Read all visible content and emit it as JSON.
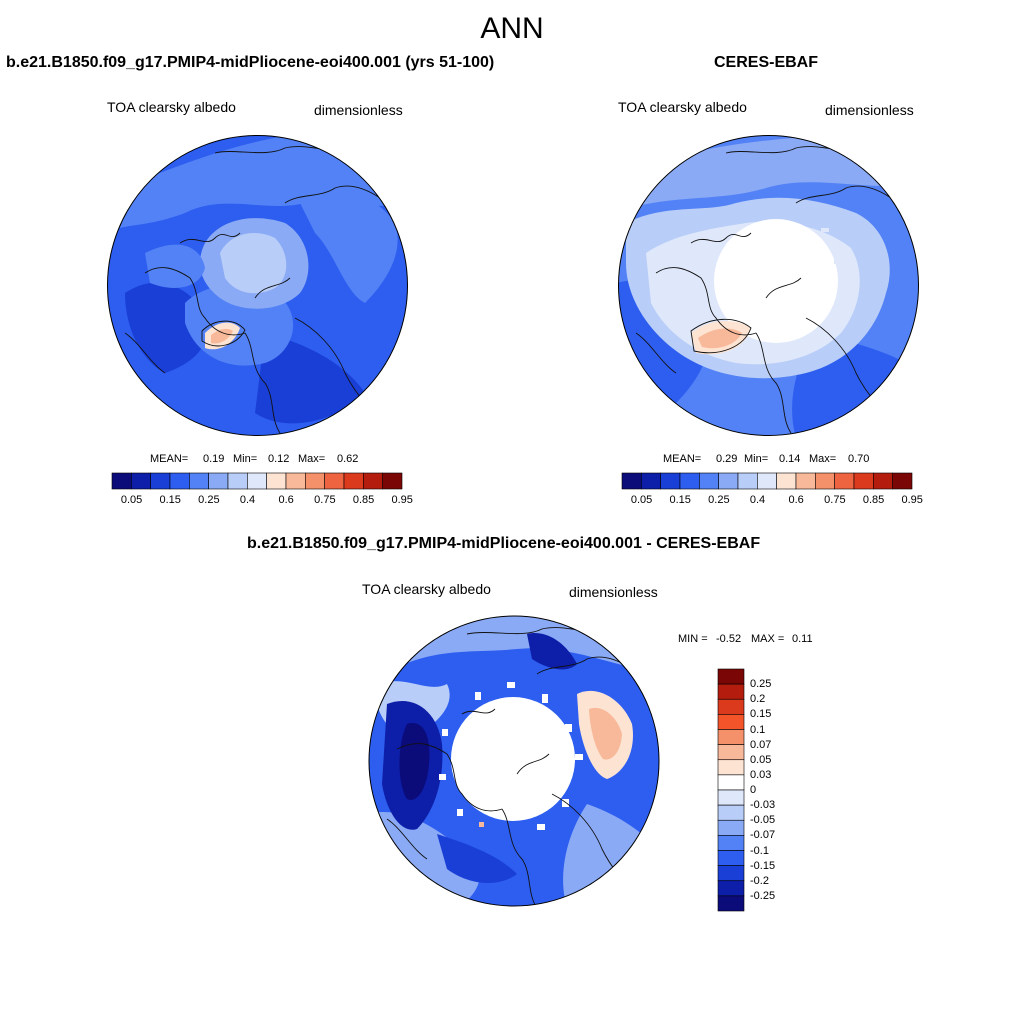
{
  "figure": {
    "title": "ANN"
  },
  "panels": [
    {
      "case_title": "b.e21.B1850.f09_g17.PMIP4-midPliocene-eoi400.001 (yrs 51-100)",
      "variable_label": "TOA clearsky albedo",
      "units_label": "dimensionless",
      "stats": {
        "mean_label": "MEAN=",
        "mean": "0.19",
        "min_label": "Min=",
        "min": "0.12",
        "max_label": "Max=",
        "max": "0.62"
      }
    },
    {
      "case_title": "CERES-EBAF",
      "variable_label": "TOA clearsky albedo",
      "units_label": "dimensionless",
      "stats": {
        "mean_label": "MEAN=",
        "mean": "0.29",
        "min_label": "Min=",
        "min": "0.14",
        "max_label": "Max=",
        "max": "0.70"
      }
    }
  ],
  "difference_panel": {
    "case_title": "b.e21.B1850.f09_g17.PMIP4-midPliocene-eoi400.001 - CERES-EBAF",
    "variable_label": "TOA clearsky albedo",
    "units_label": "dimensionless",
    "min_label": "MIN =",
    "min": "-0.52",
    "max_label": "MAX =",
    "max": "0.11"
  },
  "colorbar_abs": {
    "colors": [
      "#0b0b7a",
      "#0d1ea8",
      "#1a3fd6",
      "#2d5ef0",
      "#5282f5",
      "#8aaaf5",
      "#b8cdf8",
      "#dfe8fb",
      "#fde3d2",
      "#f8b99a",
      "#f4916a",
      "#ee6440",
      "#dc3a1c",
      "#b41c0e",
      "#7a0606"
    ],
    "tick_labels": [
      "0.05",
      "0.15",
      "0.25",
      "0.4",
      "0.6",
      "0.75",
      "0.85",
      "0.95"
    ]
  },
  "colorbar_diff": {
    "colors": [
      "#7a0606",
      "#b41c0e",
      "#dc3a1c",
      "#f3542a",
      "#f4916a",
      "#f8b99a",
      "#fde3d2",
      "#ffffff",
      "#dfe8fb",
      "#b8cdf8",
      "#8aaaf5",
      "#5282f5",
      "#2d5ef0",
      "#1a3fd6",
      "#0d1ea8",
      "#0b0b7a"
    ],
    "tick_labels": [
      "0.25",
      "0.2",
      "0.15",
      "0.1",
      "0.07",
      "0.05",
      "0.03",
      "0",
      "-0.03",
      "-0.05",
      "-0.07",
      "-0.1",
      "-0.15",
      "-0.2",
      "-0.25"
    ]
  }
}
